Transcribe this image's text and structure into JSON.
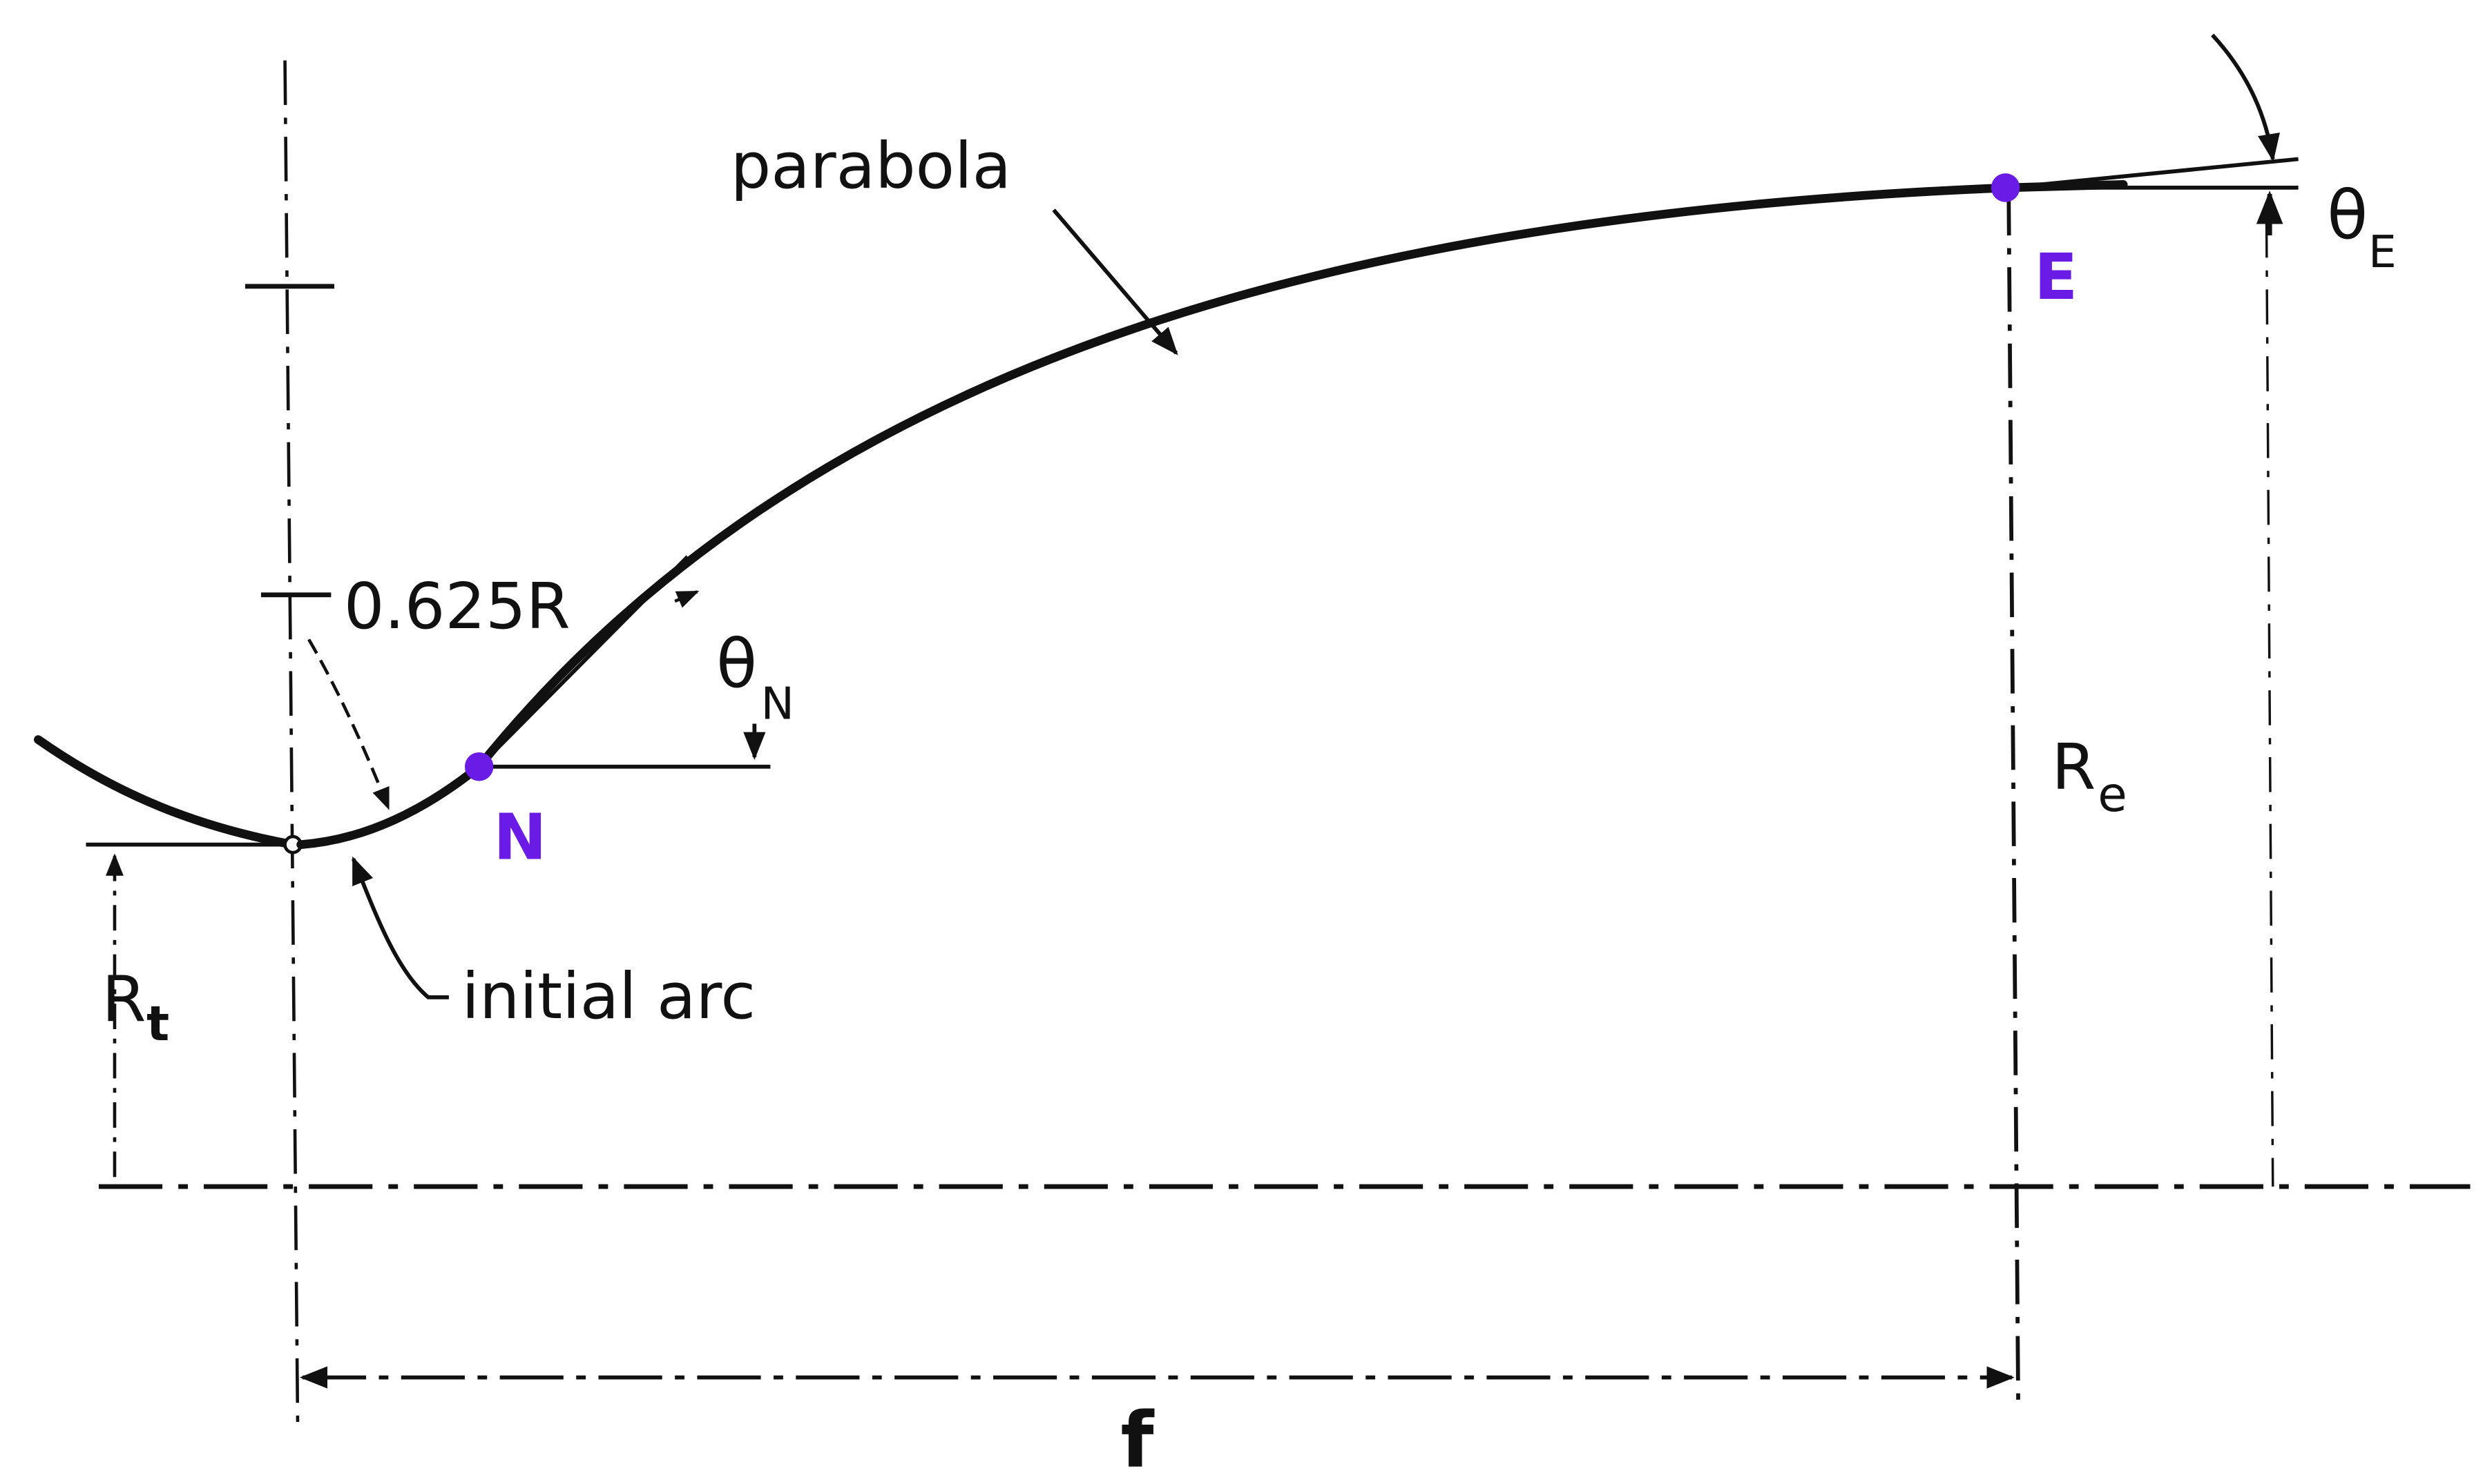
{
  "colors": {
    "ink": "#111111",
    "point": "#6a1be6"
  },
  "labels": {
    "parabola": "parabola",
    "initial_arc": "initial arc",
    "radius_factor": "0.625R",
    "theta_n_main": "θ",
    "theta_n_sub": "N",
    "theta_e_main": "θ",
    "theta_e_sub": "E",
    "rt_main": "R",
    "rt_sub": "t",
    "re_main": "R",
    "re_sub": "e",
    "point_n": "N",
    "point_e": "E",
    "length_f": "f"
  }
}
